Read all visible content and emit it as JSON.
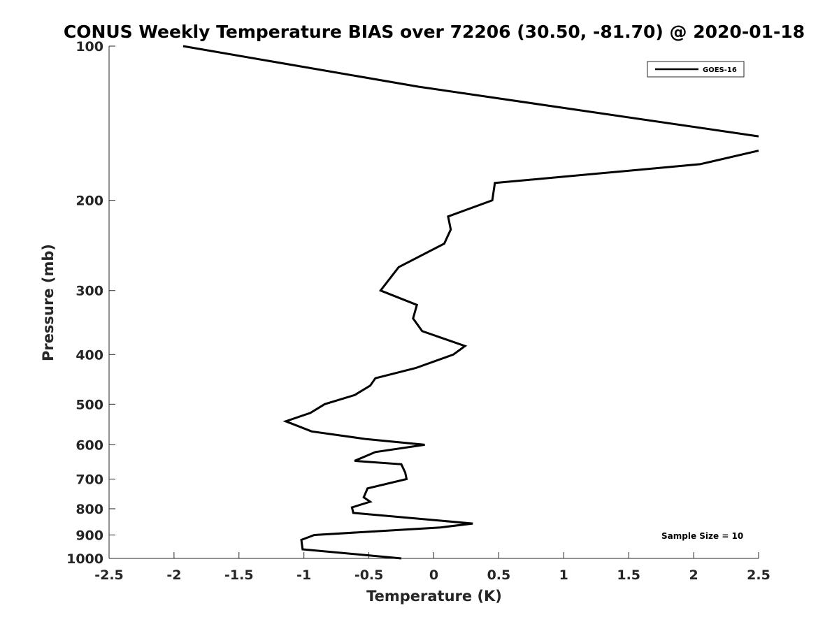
{
  "chart_data": {
    "type": "line",
    "title": "CONUS Weekly Temperature BIAS over 72206 (30.50, -81.70) @ 2020-01-18",
    "xlabel": "Temperature (K)",
    "ylabel": "Pressure (mb)",
    "xlim": [
      -2.5,
      2.5
    ],
    "ylim": [
      100,
      1000
    ],
    "y_scale": "log",
    "y_reversed": true,
    "grid": false,
    "legend_position": "top-right",
    "x_ticks": [
      "-2.5",
      "-2",
      "-1.5",
      "-1",
      "-0.5",
      "0",
      "0.5",
      "1",
      "1.5",
      "2",
      "2.5"
    ],
    "y_ticks": [
      "100",
      "200",
      "300",
      "400",
      "500",
      "600",
      "700",
      "800",
      "900",
      "1000"
    ],
    "annotation": "Sample Size = 10",
    "series": [
      {
        "name": "GOES-16",
        "color": "#000000",
        "x": [
          -1.93,
          -0.12,
          2.5,
          null,
          2.5,
          2.05,
          0.47,
          0.45,
          0.11,
          0.13,
          0.08,
          -0.27,
          -0.41,
          -0.13,
          -0.16,
          -0.09,
          0.24,
          0.15,
          -0.14,
          -0.45,
          -0.49,
          -0.61,
          -0.84,
          -0.95,
          -1.14,
          -0.94,
          -0.52,
          -0.07,
          -0.45,
          -0.61,
          -0.25,
          -0.22,
          -0.21,
          -0.51,
          -0.54,
          -0.49,
          -0.63,
          -0.62,
          0.3,
          0.05,
          -0.92,
          -1.02,
          -1.01,
          -0.25
        ],
        "y": [
          100,
          120,
          150,
          null,
          160,
          170,
          185,
          200,
          215,
          228,
          243,
          270,
          300,
          320,
          340,
          360,
          385,
          400,
          425,
          445,
          460,
          480,
          500,
          520,
          540,
          565,
          585,
          600,
          620,
          645,
          655,
          680,
          700,
          730,
          760,
          775,
          795,
          815,
          855,
          870,
          900,
          920,
          960,
          1000
        ]
      }
    ]
  }
}
